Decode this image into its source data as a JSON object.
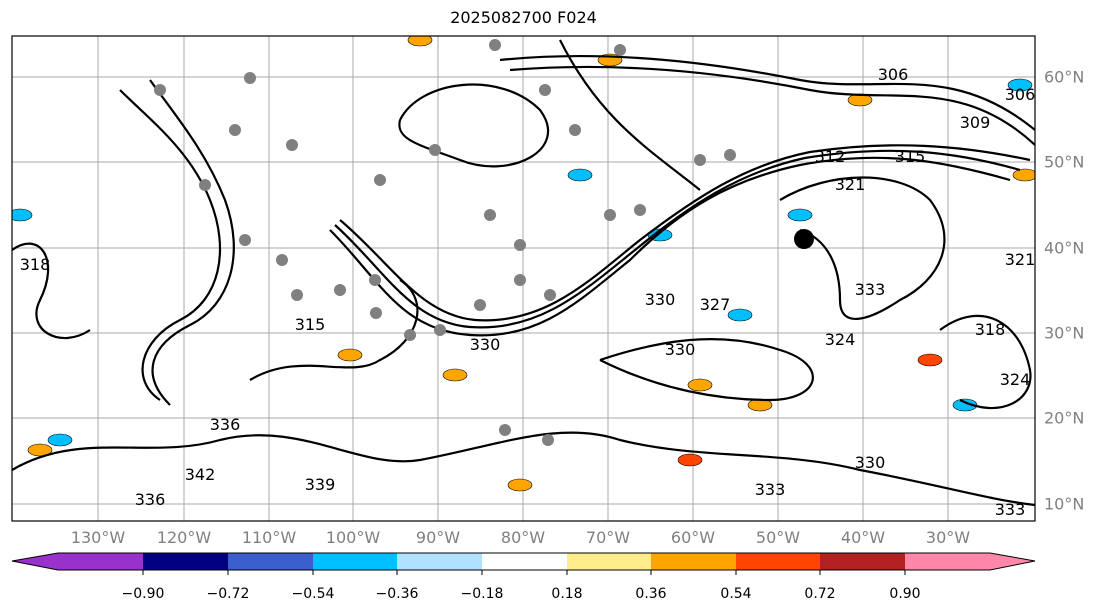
{
  "title": "2025082700 F024",
  "longitude_labels": [
    "130°W",
    "120°W",
    "110°W",
    "100°W",
    "90°W",
    "80°W",
    "70°W",
    "60°W",
    "50°W",
    "40°W",
    "30°W"
  ],
  "latitude_labels": [
    "60°N",
    "50°N",
    "40°N",
    "30°N",
    "20°N",
    "10°N"
  ],
  "contour_labels": [
    "306",
    "306",
    "309",
    "312",
    "315",
    "318",
    "321",
    "324",
    "327",
    "330",
    "330",
    "330",
    "333",
    "333",
    "336",
    "336",
    "339",
    "342",
    "318",
    "321",
    "324",
    "315",
    "330",
    "333"
  ],
  "colorbar": {
    "ticks": [
      "−0.90",
      "−0.72",
      "−0.54",
      "−0.36",
      "−0.18",
      "0.18",
      "0.36",
      "0.54",
      "0.72",
      "0.90"
    ],
    "colors": [
      "#9932cc",
      "#000080",
      "#3a5fcd",
      "#00bfff",
      "#b0e2ff",
      "#ffffff",
      "#ffec8b",
      "#ffa500",
      "#ff4500",
      "#b22222",
      "#ff88aa"
    ]
  }
}
